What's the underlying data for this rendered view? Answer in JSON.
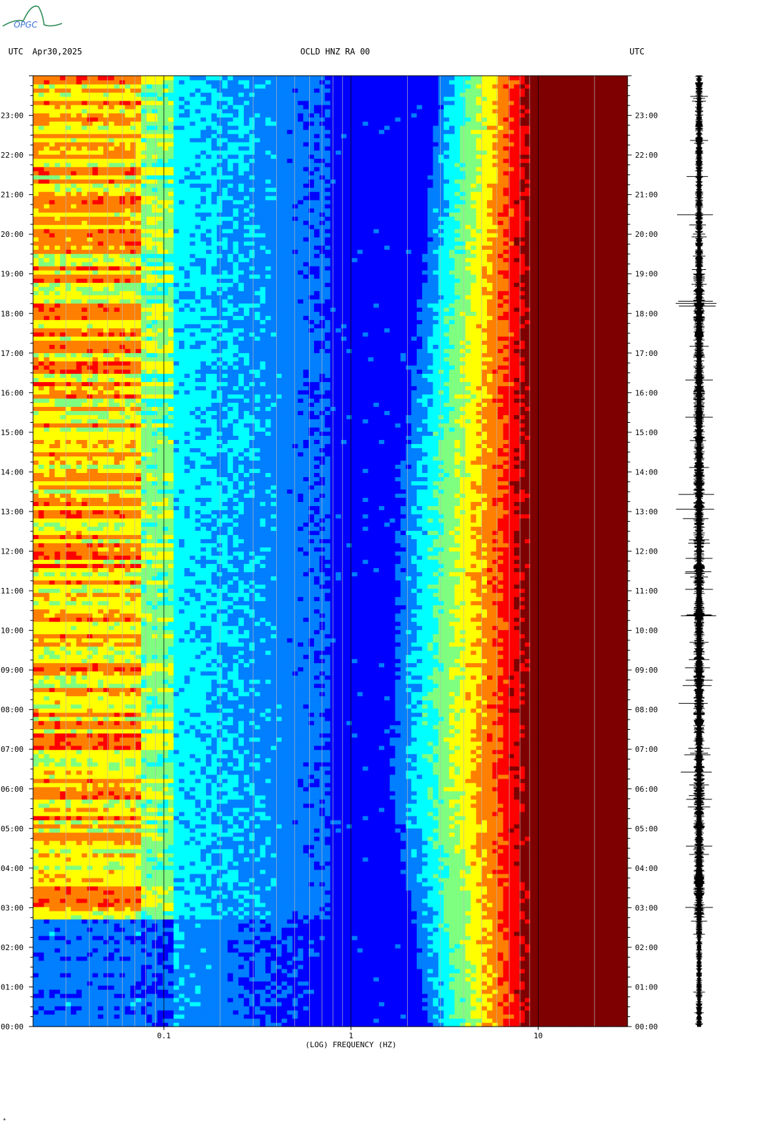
{
  "header": {
    "logo_text": "OPGC",
    "left_tz": "UTC",
    "date": "Apr30,2025",
    "station": "OCLD HNZ RA 00",
    "right_tz": "UTC"
  },
  "footer_mark": "*",
  "colors": {
    "colormap": [
      "#00007f",
      "#0000ff",
      "#007fff",
      "#00ffff",
      "#7fff7f",
      "#ffff00",
      "#ff7f00",
      "#ff0000",
      "#7f0000"
    ],
    "logo": "#2e8b57",
    "logo_text": "#3a6fd8"
  },
  "chart_data": {
    "type": "heatmap",
    "title": "OCLD HNZ RA 00",
    "xlabel": "(LOG) FREQUENCY (HZ)",
    "x_scale": "log",
    "xlim": [
      0.02,
      30
    ],
    "x_ticks": [
      {
        "value": 0.1,
        "label": "0.1"
      },
      {
        "value": 1,
        "label": "1"
      },
      {
        "value": 10,
        "label": "10"
      }
    ],
    "y_ticks": [
      "00:00",
      "01:00",
      "02:00",
      "03:00",
      "04:00",
      "05:00",
      "06:00",
      "07:00",
      "08:00",
      "09:00",
      "10:00",
      "11:00",
      "12:00",
      "13:00",
      "14:00",
      "15:00",
      "16:00",
      "17:00",
      "18:00",
      "19:00",
      "20:00",
      "21:00",
      "22:00",
      "23:00"
    ],
    "ylim_hours": [
      0,
      24
    ],
    "gridlines_hz": [
      0.03,
      0.04,
      0.05,
      0.06,
      0.07,
      0.08,
      0.09,
      0.1,
      0.2,
      0.3,
      0.4,
      0.5,
      0.6,
      0.7,
      0.8,
      0.9,
      1,
      2,
      3,
      4,
      5,
      6,
      7,
      8,
      9,
      10,
      20
    ],
    "band_edge_hz": [
      {
        "hour": 0,
        "f": 4.2
      },
      {
        "hour": 2.7,
        "f": 3.6
      },
      {
        "hour": 4,
        "f": 3.2
      },
      {
        "hour": 6,
        "f": 2.7
      },
      {
        "hour": 8,
        "f": 2.8
      },
      {
        "hour": 10,
        "f": 2.9
      },
      {
        "hour": 12,
        "f": 2.9
      },
      {
        "hour": 14,
        "f": 3.1
      },
      {
        "hour": 16,
        "f": 3.5
      },
      {
        "hour": 18,
        "f": 3.8
      },
      {
        "hour": 20,
        "f": 4.2
      },
      {
        "hour": 22,
        "f": 4.5
      },
      {
        "hour": 24,
        "f": 5.0
      }
    ],
    "saturation_hz": 10,
    "microseism_onset_hour": 2.7
  }
}
